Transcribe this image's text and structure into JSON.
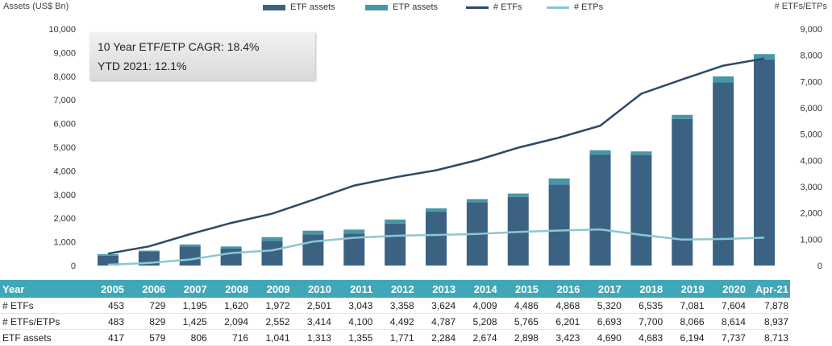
{
  "chart_data": {
    "type": "bar",
    "categories": [
      "2005",
      "2006",
      "2007",
      "2008",
      "2009",
      "2010",
      "2011",
      "2012",
      "2013",
      "2014",
      "2015",
      "2016",
      "2017",
      "2018",
      "2019",
      "2020",
      "Apr-21"
    ],
    "series": [
      {
        "name": "ETF assets",
        "kind": "bar",
        "axis": "left",
        "color": "#3b6283",
        "values": [
          417,
          579,
          806,
          716,
          1041,
          1313,
          1355,
          1771,
          2284,
          2674,
          2898,
          3423,
          4690,
          4683,
          6194,
          7737,
          8713
        ]
      },
      {
        "name": "ETP assets",
        "kind": "bar-stacked",
        "axis": "left",
        "color": "#4797a8",
        "values": [
          66,
          52,
          85,
          90,
          160,
          160,
          165,
          175,
          135,
          135,
          145,
          260,
          185,
          140,
          175,
          260,
          225
        ]
      },
      {
        "name": "# ETFs",
        "kind": "line",
        "axis": "right",
        "color": "#2d4a66",
        "values": [
          453,
          729,
          1195,
          1620,
          1972,
          2501,
          3043,
          3358,
          3624,
          4009,
          4486,
          4868,
          5320,
          6535,
          7081,
          7604,
          7878
        ]
      },
      {
        "name": "# ETPs",
        "kind": "line",
        "axis": "right",
        "color": "#8cc7d3",
        "values": [
          30,
          100,
          230,
          474,
          580,
          913,
          1057,
          1134,
          1163,
          1199,
          1279,
          1333,
          1373,
          1165,
          985,
          1010,
          1059
        ]
      }
    ],
    "ylabel": "Assets (US$ Bn)",
    "ylabel_right": "# ETFs/ETPs",
    "ylim": [
      0,
      10000
    ],
    "ylim_right": [
      0,
      9000
    ],
    "yticks": [
      "0",
      "1,000",
      "2,000",
      "3,000",
      "4,000",
      "5,000",
      "6,000",
      "7,000",
      "8,000",
      "9,000",
      "10,000"
    ],
    "yticks_right": [
      "0",
      "1,000",
      "2,000",
      "3,000",
      "4,000",
      "5,000",
      "6,000",
      "7,000",
      "8,000",
      "9,000"
    ],
    "legend_position": "top",
    "grid": false
  },
  "annotation": {
    "line1": "10 Year ETF/ETP CAGR: 18.4%",
    "line2": "YTD 2021: 12.1%"
  },
  "legend": [
    {
      "label": "ETF assets",
      "color": "#3b6283",
      "style": "bar"
    },
    {
      "label": "ETP assets",
      "color": "#4797a8",
      "style": "bar"
    },
    {
      "label": "# ETFs",
      "color": "#2d4a66",
      "style": "line"
    },
    {
      "label": "# ETPs",
      "color": "#8cc7d3",
      "style": "line"
    }
  ],
  "table": {
    "header": [
      "Year",
      "2005",
      "2006",
      "2007",
      "2008",
      "2009",
      "2010",
      "2011",
      "2012",
      "2013",
      "2014",
      "2015",
      "2016",
      "2017",
      "2018",
      "2019",
      "2020",
      "Apr-21"
    ],
    "rows": [
      [
        "# ETFs",
        "453",
        "729",
        "1,195",
        "1,620",
        "1,972",
        "2,501",
        "3,043",
        "3,358",
        "3,624",
        "4,009",
        "4,486",
        "4,868",
        "5,320",
        "6,535",
        "7,081",
        "7,604",
        "7,878"
      ],
      [
        "# ETFs/ETPs",
        "483",
        "829",
        "1,425",
        "2,094",
        "2,552",
        "3,414",
        "4,100",
        "4,492",
        "4,787",
        "5,208",
        "5,765",
        "6,201",
        "6,693",
        "7,700",
        "8,066",
        "8,614",
        "8,937"
      ],
      [
        "ETF assets",
        "417",
        "579",
        "806",
        "716",
        "1,041",
        "1,313",
        "1,355",
        "1,771",
        "2,284",
        "2,674",
        "2,898",
        "3,423",
        "4,690",
        "4,683",
        "6,194",
        "7,737",
        "8,713"
      ]
    ]
  }
}
